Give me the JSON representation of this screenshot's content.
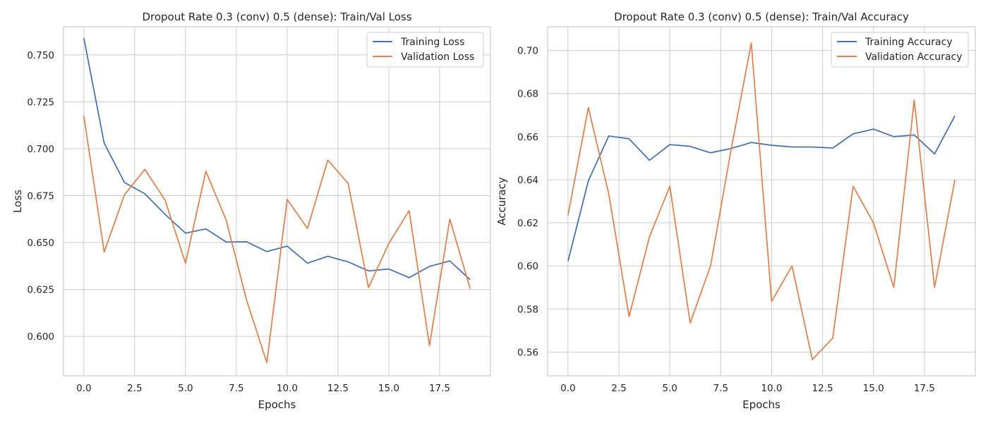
{
  "colors": {
    "training": "#4c72b0",
    "validation": "#dd8452"
  },
  "chart_data": [
    {
      "type": "line",
      "title": "Dropout Rate 0.3 (conv) 0.5 (dense):  Train/Val Loss",
      "xlabel": "Epochs",
      "ylabel": "Loss",
      "xlim": [
        -1,
        20
      ],
      "ylim": [
        0.579,
        0.765
      ],
      "xticks": [
        0,
        2.5,
        5,
        7.5,
        10,
        12.5,
        15,
        17.5
      ],
      "xtick_labels": [
        "0.0",
        "2.5",
        "5.0",
        "7.5",
        "10.0",
        "12.5",
        "15.0",
        "17.5"
      ],
      "yticks": [
        0.6,
        0.625,
        0.65,
        0.675,
        0.7,
        0.725,
        0.75
      ],
      "ytick_labels": [
        "0.600",
        "0.625",
        "0.650",
        "0.675",
        "0.700",
        "0.725",
        "0.750"
      ],
      "grid": true,
      "legend_position": "top-right",
      "x": [
        0,
        1,
        2,
        3,
        4,
        5,
        6,
        7,
        8,
        9,
        10,
        11,
        12,
        13,
        14,
        15,
        16,
        17,
        18,
        19
      ],
      "series": [
        {
          "name": "Training Loss",
          "values": [
            0.759,
            0.703,
            0.682,
            0.676,
            0.665,
            0.655,
            0.6573,
            0.6503,
            0.6504,
            0.6452,
            0.6481,
            0.639,
            0.6427,
            0.6397,
            0.6349,
            0.6359,
            0.6313,
            0.6373,
            0.6402,
            0.6302
          ]
        },
        {
          "name": "Validation Loss",
          "values": [
            0.7175,
            0.645,
            0.6755,
            0.689,
            0.6725,
            0.639,
            0.688,
            0.662,
            0.6195,
            0.586,
            0.673,
            0.6575,
            0.694,
            0.6815,
            0.626,
            0.6495,
            0.667,
            0.595,
            0.6625,
            0.6255
          ]
        }
      ]
    },
    {
      "type": "line",
      "title": "Dropout Rate 0.3 (conv) 0.5 (dense):  Train/Val Accuracy",
      "xlabel": "Epochs",
      "ylabel": "Accuracy",
      "xlim": [
        -1,
        20
      ],
      "ylim": [
        0.549,
        0.711
      ],
      "xticks": [
        0,
        2.5,
        5,
        7.5,
        10,
        12.5,
        15,
        17.5
      ],
      "xtick_labels": [
        "0.0",
        "2.5",
        "5.0",
        "7.5",
        "10.0",
        "12.5",
        "15.0",
        "17.5"
      ],
      "yticks": [
        0.56,
        0.58,
        0.6,
        0.62,
        0.64,
        0.66,
        0.68,
        0.7
      ],
      "ytick_labels": [
        "0.56",
        "0.58",
        "0.60",
        "0.62",
        "0.64",
        "0.66",
        "0.68",
        "0.70"
      ],
      "grid": true,
      "legend_position": "top-right",
      "x": [
        0,
        1,
        2,
        3,
        4,
        5,
        6,
        7,
        8,
        9,
        10,
        11,
        12,
        13,
        14,
        15,
        16,
        17,
        18,
        19
      ],
      "series": [
        {
          "name": "Training Accuracy",
          "values": [
            0.6022,
            0.6395,
            0.6603,
            0.659,
            0.649,
            0.6563,
            0.6555,
            0.6525,
            0.6545,
            0.6573,
            0.656,
            0.6552,
            0.6552,
            0.6547,
            0.6613,
            0.6635,
            0.66,
            0.6608,
            0.652,
            0.6697
          ]
        },
        {
          "name": "Validation Accuracy",
          "values": [
            0.6235,
            0.6735,
            0.6335,
            0.5765,
            0.6135,
            0.637,
            0.5735,
            0.6,
            0.6535,
            0.7035,
            0.5835,
            0.6,
            0.5565,
            0.5665,
            0.637,
            0.62,
            0.59,
            0.677,
            0.59,
            0.64
          ]
        }
      ]
    }
  ]
}
